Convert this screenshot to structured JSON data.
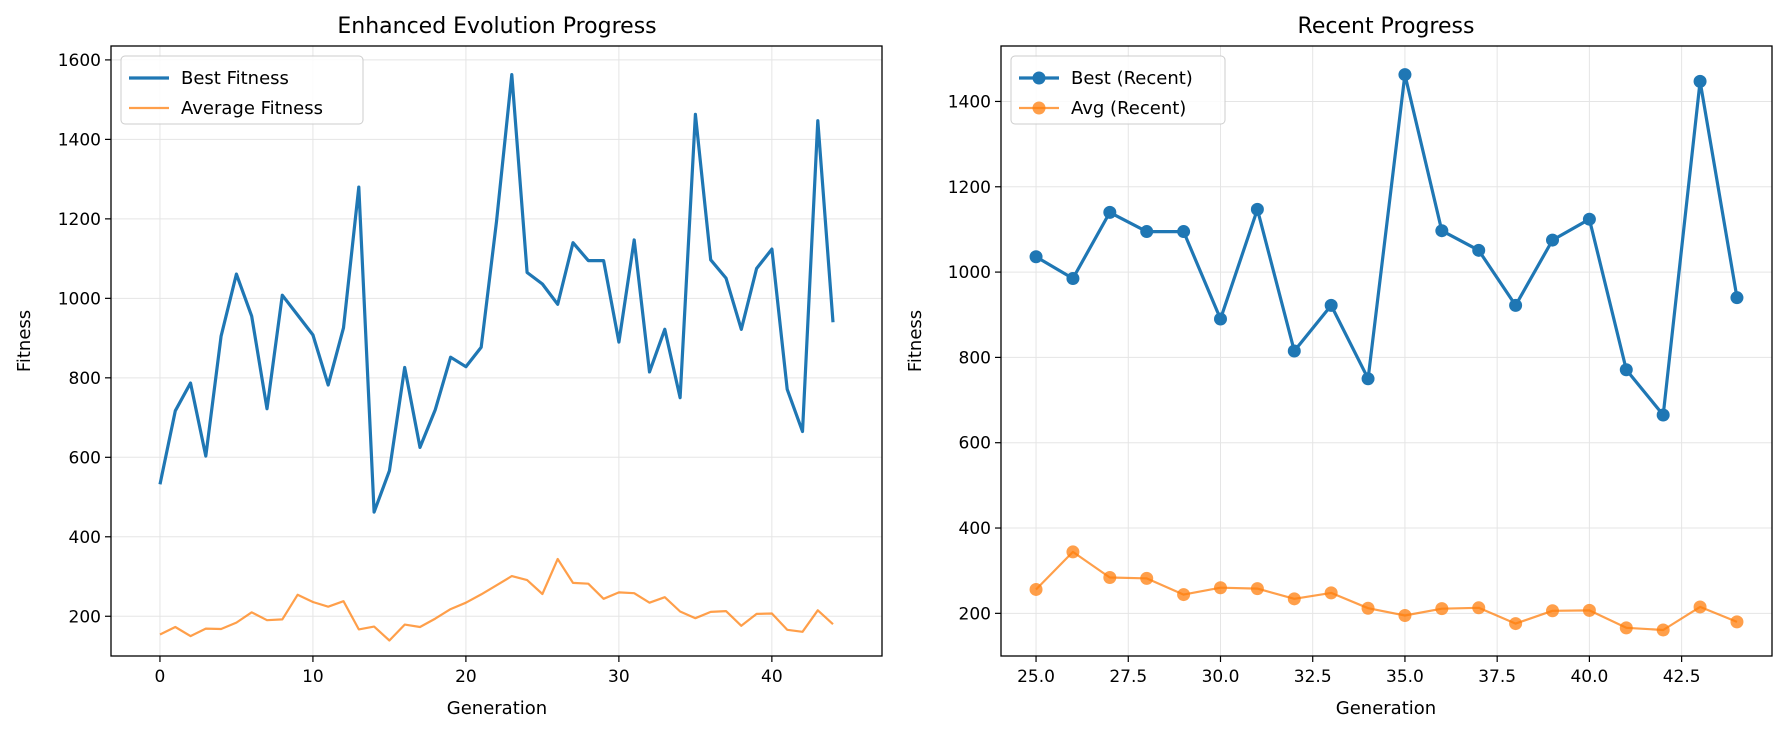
{
  "chart_data": [
    {
      "type": "line",
      "title": "Enhanced Evolution Progress",
      "xlabel": "Generation",
      "ylabel": "Fitness",
      "xlim": [
        -3.2,
        47.2
      ],
      "ylim": [
        100,
        1635
      ],
      "xticks": [
        0,
        10,
        20,
        30,
        40
      ],
      "yticks": [
        200,
        400,
        600,
        800,
        1000,
        1200,
        1400,
        1600
      ],
      "grid": true,
      "legend_position": "upper-left",
      "x": [
        0,
        1,
        2,
        3,
        4,
        5,
        6,
        7,
        8,
        9,
        10,
        11,
        12,
        13,
        14,
        15,
        16,
        17,
        18,
        19,
        20,
        21,
        22,
        23,
        24,
        25,
        26,
        27,
        28,
        29,
        30,
        31,
        32,
        33,
        34,
        35,
        36,
        37,
        38,
        39,
        40,
        41,
        42,
        43,
        44
      ],
      "series": [
        {
          "name": "Best Fitness",
          "color": "#1f77b4",
          "markers": false,
          "values": [
            532,
            717,
            787,
            603,
            905,
            1061,
            955,
            722,
            1008,
            958,
            908,
            782,
            926,
            1280,
            462,
            566,
            826,
            625,
            720,
            852,
            828,
            877,
            1193,
            1563,
            1065,
            1036,
            985,
            1140,
            1095,
            1095,
            890,
            1147,
            815,
            922,
            750,
            1463,
            1097,
            1051,
            922,
            1075,
            1124,
            771,
            665,
            1447,
            940
          ]
        },
        {
          "name": "Average Fitness",
          "color": "#ff7f0e",
          "markers": false,
          "values": [
            154,
            173,
            150,
            169,
            168,
            184,
            210,
            190,
            192,
            254,
            236,
            224,
            238,
            167,
            174,
            139,
            179,
            173,
            194,
            218,
            234,
            255,
            278,
            301,
            291,
            256,
            344,
            284,
            282,
            244,
            260,
            258,
            234,
            248,
            212,
            195,
            211,
            213,
            176,
            206,
            207,
            166,
            161,
            215,
            180
          ]
        }
      ]
    },
    {
      "type": "line",
      "title": "Recent Progress",
      "xlabel": "Generation",
      "ylabel": "Fitness",
      "xlim": [
        24.05,
        44.95
      ],
      "ylim": [
        100,
        1530
      ],
      "xticks": [
        "25.0",
        "27.5",
        "30.0",
        "32.5",
        "35.0",
        "37.5",
        "40.0",
        "42.5"
      ],
      "yticks": [
        200,
        400,
        600,
        800,
        1000,
        1200,
        1400
      ],
      "grid": true,
      "legend_position": "upper-left",
      "x": [
        25,
        26,
        27,
        28,
        29,
        30,
        31,
        32,
        33,
        34,
        35,
        36,
        37,
        38,
        39,
        40,
        41,
        42,
        43,
        44
      ],
      "series": [
        {
          "name": "Best (Recent)",
          "color": "#1f77b4",
          "markers": true,
          "values": [
            1036,
            985,
            1140,
            1095,
            1095,
            890,
            1147,
            815,
            922,
            750,
            1463,
            1097,
            1051,
            922,
            1075,
            1124,
            771,
            665,
            1447,
            940
          ]
        },
        {
          "name": "Avg (Recent)",
          "color": "#ff7f0e",
          "markers": true,
          "values": [
            256,
            344,
            284,
            282,
            244,
            260,
            258,
            234,
            248,
            212,
            195,
            211,
            213,
            176,
            206,
            207,
            166,
            161,
            215,
            180
          ]
        }
      ]
    }
  ]
}
